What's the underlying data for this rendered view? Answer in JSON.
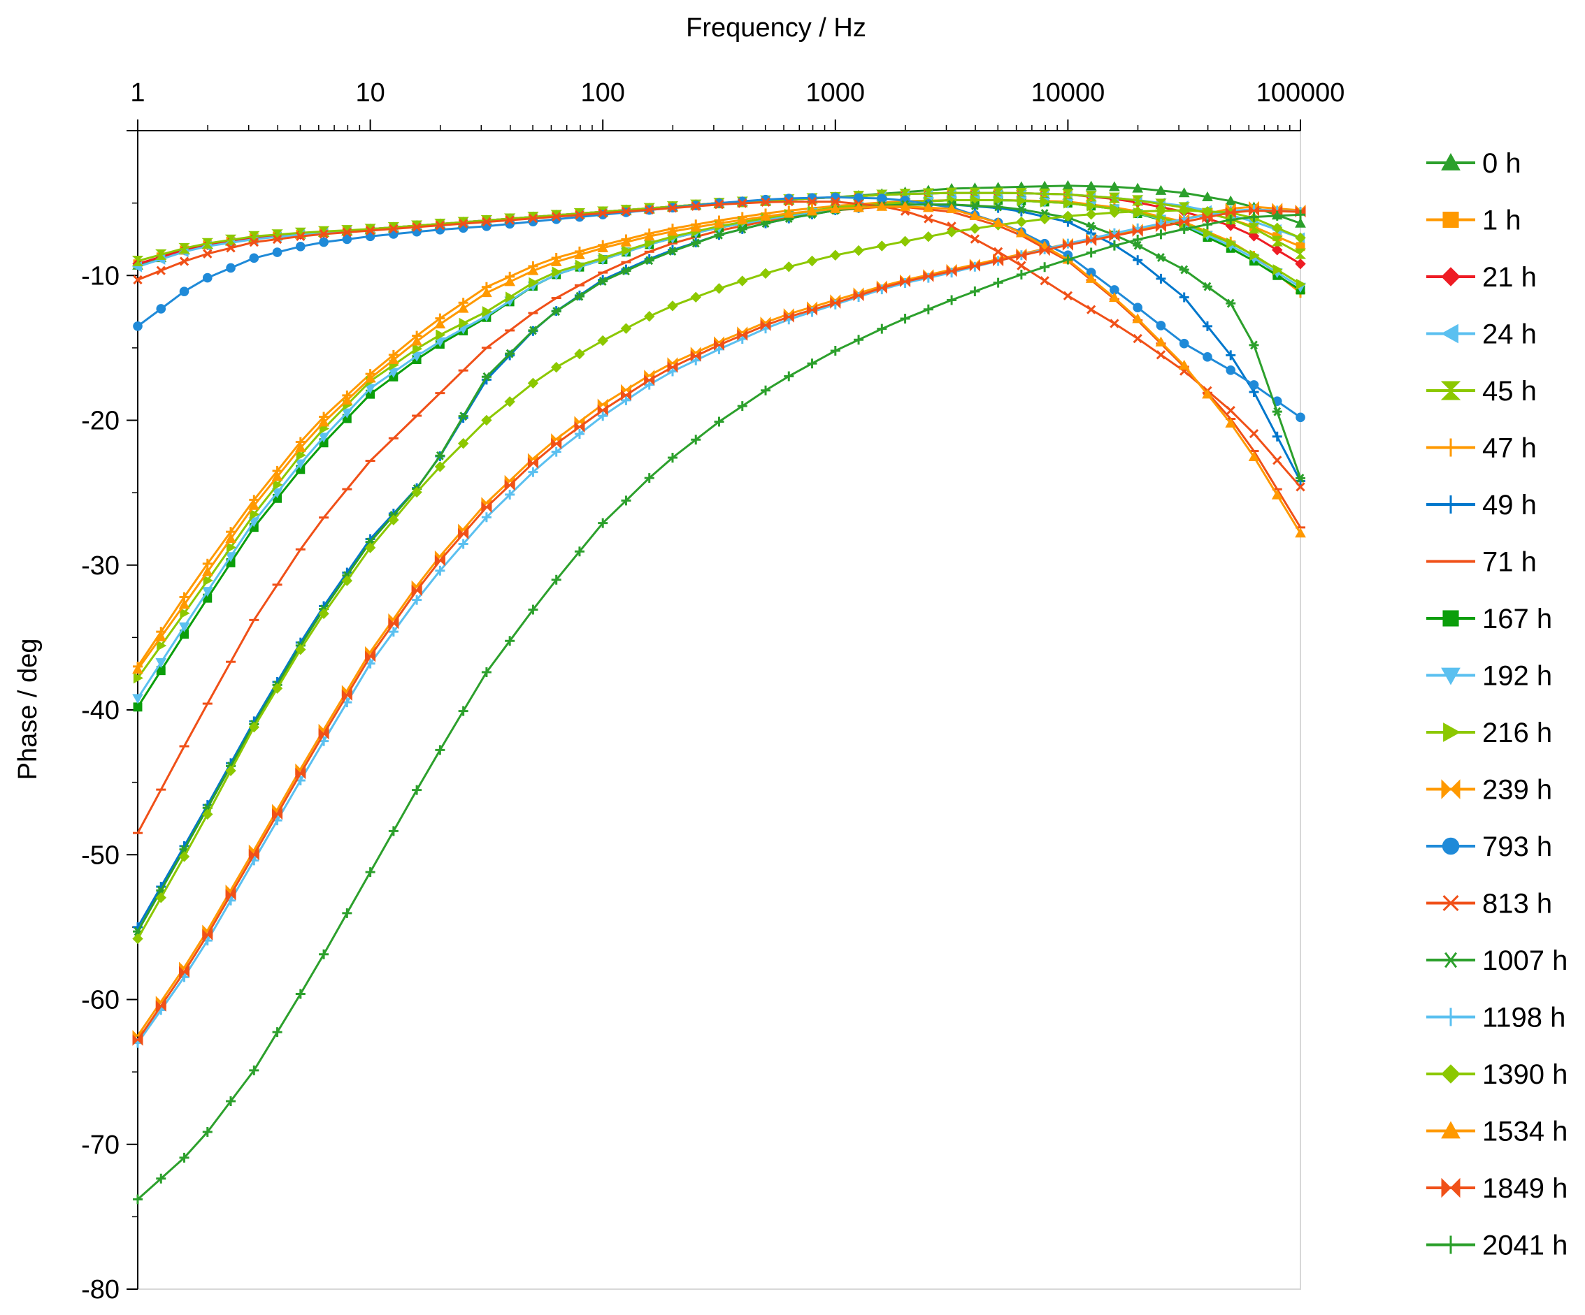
{
  "chart_data": {
    "type": "line",
    "title": "",
    "xlabel": "Frequency / Hz",
    "ylabel": "Phase / deg",
    "xscale": "log",
    "xlim": [
      1,
      100000
    ],
    "ylim": [
      -80,
      0
    ],
    "x_axis_position": "top",
    "legend_position": "right",
    "x_ticks": [
      "1",
      "10",
      "100",
      "1000",
      "10000",
      "100000"
    ],
    "y_ticks": [
      "-10",
      "-20",
      "-30",
      "-40",
      "-50",
      "-60",
      "-70",
      "-80"
    ],
    "x": [
      1,
      1.78,
      3.16,
      5.62,
      10,
      17.8,
      31.6,
      56.2,
      100,
      178,
      316,
      562,
      1000,
      1780,
      3160,
      5620,
      10000,
      17800,
      31600,
      56200,
      100000
    ],
    "series": [
      {
        "name": "0 h",
        "color": "#2ca02c",
        "marker": "triangle",
        "values": [
          -9.3,
          -8.0,
          -7.4,
          -7.1,
          -6.8,
          -6.5,
          -6.2,
          -5.9,
          -5.6,
          -5.3,
          -5.0,
          -4.8,
          -4.6,
          -4.3,
          -4.0,
          -3.9,
          -3.8,
          -3.9,
          -4.3,
          -5.0,
          -6.4
        ]
      },
      {
        "name": "1 h",
        "color": "#ff9900",
        "marker": "square",
        "values": [
          -9.2,
          -8.0,
          -7.4,
          -7.1,
          -6.8,
          -6.5,
          -6.2,
          -5.9,
          -5.6,
          -5.3,
          -5.0,
          -4.8,
          -4.6,
          -4.4,
          -4.3,
          -4.3,
          -4.4,
          -4.7,
          -5.3,
          -6.3,
          -8.0
        ]
      },
      {
        "name": "21 h",
        "color": "#ee1c24",
        "marker": "diamond",
        "values": [
          -9.2,
          -8.0,
          -7.4,
          -7.1,
          -6.8,
          -6.5,
          -6.2,
          -5.9,
          -5.6,
          -5.3,
          -5.0,
          -4.8,
          -4.6,
          -4.4,
          -4.3,
          -4.3,
          -4.4,
          -4.8,
          -5.6,
          -6.8,
          -9.2
        ]
      },
      {
        "name": "24 h",
        "color": "#5bc0f0",
        "marker": "triangle-left",
        "values": [
          -9.4,
          -8.1,
          -7.5,
          -7.1,
          -6.8,
          -6.5,
          -6.2,
          -5.9,
          -5.6,
          -5.3,
          -5.0,
          -4.8,
          -4.6,
          -4.4,
          -4.3,
          -4.3,
          -4.4,
          -4.7,
          -5.2,
          -6.0,
          -7.4
        ]
      },
      {
        "name": "45 h",
        "color": "#8cc800",
        "marker": "hourglass",
        "values": [
          -9.0,
          -7.9,
          -7.3,
          -7.0,
          -6.8,
          -6.5,
          -6.2,
          -5.9,
          -5.6,
          -5.3,
          -5.0,
          -4.8,
          -4.6,
          -4.4,
          -4.3,
          -4.3,
          -4.4,
          -4.7,
          -5.3,
          -6.3,
          -8.5
        ]
      },
      {
        "name": "47 h",
        "color": "#ff9900",
        "marker": "plus",
        "values": [
          -37.0,
          -31.0,
          -25.5,
          -20.5,
          -16.8,
          -13.5,
          -10.8,
          -9.0,
          -7.9,
          -6.9,
          -6.2,
          -5.6,
          -5.2,
          -4.9,
          -4.8,
          -4.8,
          -4.9,
          -5.4,
          -6.3,
          -8.0,
          -11.2
        ]
      },
      {
        "name": "49 h",
        "color": "#0077cc",
        "marker": "plus",
        "values": [
          -55.0,
          -48.0,
          -40.8,
          -34.0,
          -28.2,
          -23.8,
          -17.2,
          -13.0,
          -10.3,
          -8.5,
          -7.2,
          -6.2,
          -5.5,
          -5.1,
          -5.1,
          -5.4,
          -6.3,
          -8.3,
          -11.5,
          -16.5,
          -24.2
        ]
      },
      {
        "name": "71 h",
        "color": "#f05018",
        "marker": "dash",
        "values": [
          -48.5,
          -41.0,
          -33.8,
          -27.7,
          -22.8,
          -18.9,
          -15.0,
          -12.0,
          -9.8,
          -8.0,
          -6.9,
          -6.1,
          -5.5,
          -5.2,
          -5.6,
          -6.8,
          -9.0,
          -12.3,
          -16.3,
          -20.8,
          -27.4
        ]
      },
      {
        "name": "167 h",
        "color": "#0b9e0b",
        "marker": "square",
        "values": [
          -39.8,
          -33.5,
          -27.4,
          -22.4,
          -18.2,
          -15.2,
          -12.9,
          -10.2,
          -8.9,
          -7.6,
          -6.7,
          -6.0,
          -5.4,
          -5.0,
          -4.8,
          -4.8,
          -5.0,
          -5.5,
          -6.6,
          -8.5,
          -11.0
        ]
      },
      {
        "name": "192 h",
        "color": "#5bc0f0",
        "marker": "triangle-down",
        "values": [
          -39.2,
          -33.0,
          -27.0,
          -22.0,
          -17.8,
          -15.0,
          -12.8,
          -10.2,
          -8.9,
          -7.6,
          -6.7,
          -6.0,
          -5.4,
          -5.0,
          -4.8,
          -4.8,
          -5.0,
          -5.5,
          -6.5,
          -8.3,
          -10.8
        ]
      },
      {
        "name": "216 h",
        "color": "#8cc800",
        "marker": "triangle-right",
        "values": [
          -37.8,
          -32.2,
          -26.5,
          -21.4,
          -17.3,
          -14.5,
          -12.5,
          -10.0,
          -8.8,
          -7.5,
          -6.6,
          -5.9,
          -5.3,
          -5.0,
          -4.8,
          -4.8,
          -5.0,
          -5.5,
          -6.4,
          -8.1,
          -10.6
        ]
      },
      {
        "name": "239 h",
        "color": "#ff9900",
        "marker": "bowtie",
        "values": [
          -62.5,
          -56.6,
          -49.7,
          -42.7,
          -36.0,
          -30.3,
          -25.7,
          -21.9,
          -18.9,
          -16.4,
          -14.6,
          -12.9,
          -11.7,
          -10.5,
          -9.6,
          -8.7,
          -7.8,
          -7.0,
          -6.1,
          -5.2,
          -5.5
        ]
      },
      {
        "name": "793 h",
        "color": "#1f8ad8",
        "marker": "circle",
        "values": [
          -13.5,
          -10.5,
          -8.8,
          -7.8,
          -7.3,
          -6.9,
          -6.6,
          -6.2,
          -5.8,
          -5.4,
          -5.0,
          -4.7,
          -4.6,
          -4.7,
          -5.3,
          -6.6,
          -8.6,
          -11.6,
          -14.7,
          -17.0,
          -19.8
        ]
      },
      {
        "name": "813 h",
        "color": "#f05018",
        "marker": "x",
        "values": [
          -10.3,
          -8.7,
          -7.7,
          -7.2,
          -6.9,
          -6.6,
          -6.3,
          -6.0,
          -5.7,
          -5.4,
          -5.1,
          -4.9,
          -4.9,
          -5.3,
          -6.6,
          -8.8,
          -11.4,
          -13.8,
          -16.6,
          -20.0,
          -24.6
        ]
      },
      {
        "name": "1007 h",
        "color": "#2ca02c",
        "marker": "asterisk",
        "values": [
          -55.3,
          -48.2,
          -41.0,
          -34.2,
          -28.4,
          -23.8,
          -17.0,
          -13.0,
          -10.4,
          -8.6,
          -7.2,
          -6.2,
          -5.5,
          -5.1,
          -5.1,
          -5.3,
          -6.0,
          -7.5,
          -9.6,
          -12.5,
          -24.0
        ]
      },
      {
        "name": "1198 h",
        "color": "#5bc0f0",
        "marker": "plus",
        "values": [
          -63.0,
          -57.3,
          -50.4,
          -43.5,
          -36.8,
          -31.3,
          -26.7,
          -22.8,
          -19.7,
          -17.0,
          -15.1,
          -13.3,
          -12.0,
          -10.7,
          -9.8,
          -8.8,
          -7.8,
          -6.9,
          -6.1,
          -5.4,
          -5.6
        ]
      },
      {
        "name": "1390 h",
        "color": "#8cc800",
        "marker": "diamond",
        "values": [
          -55.8,
          -48.7,
          -41.2,
          -34.5,
          -28.8,
          -24.0,
          -20.0,
          -16.8,
          -14.5,
          -12.4,
          -10.9,
          -9.6,
          -8.6,
          -7.8,
          -7.0,
          -6.4,
          -5.9,
          -5.6,
          -5.5,
          -5.7,
          -7.4
        ]
      },
      {
        "name": "1534 h",
        "color": "#ff9900",
        "marker": "triangle",
        "values": [
          -37.2,
          -31.6,
          -25.9,
          -20.9,
          -17.1,
          -13.9,
          -11.2,
          -9.3,
          -8.1,
          -7.1,
          -6.4,
          -5.8,
          -5.4,
          -5.2,
          -5.4,
          -6.6,
          -8.9,
          -12.2,
          -16.2,
          -21.2,
          -27.8
        ]
      },
      {
        "name": "1849 h",
        "color": "#f05018",
        "marker": "bowtie",
        "values": [
          -62.8,
          -56.9,
          -50.0,
          -43.0,
          -36.3,
          -30.6,
          -26.0,
          -22.2,
          -19.3,
          -16.7,
          -14.8,
          -13.1,
          -11.9,
          -10.6,
          -9.7,
          -8.8,
          -7.9,
          -7.1,
          -6.3,
          -5.5,
          -5.6
        ]
      },
      {
        "name": "2041 h",
        "color": "#2ca02c",
        "marker": "plus",
        "values": [
          -73.8,
          -70.2,
          -64.9,
          -58.3,
          -51.2,
          -44.1,
          -37.4,
          -32.0,
          -27.1,
          -23.2,
          -20.1,
          -17.4,
          -15.2,
          -13.3,
          -11.7,
          -10.2,
          -8.9,
          -7.7,
          -6.8,
          -6.0,
          -5.8
        ]
      }
    ]
  }
}
